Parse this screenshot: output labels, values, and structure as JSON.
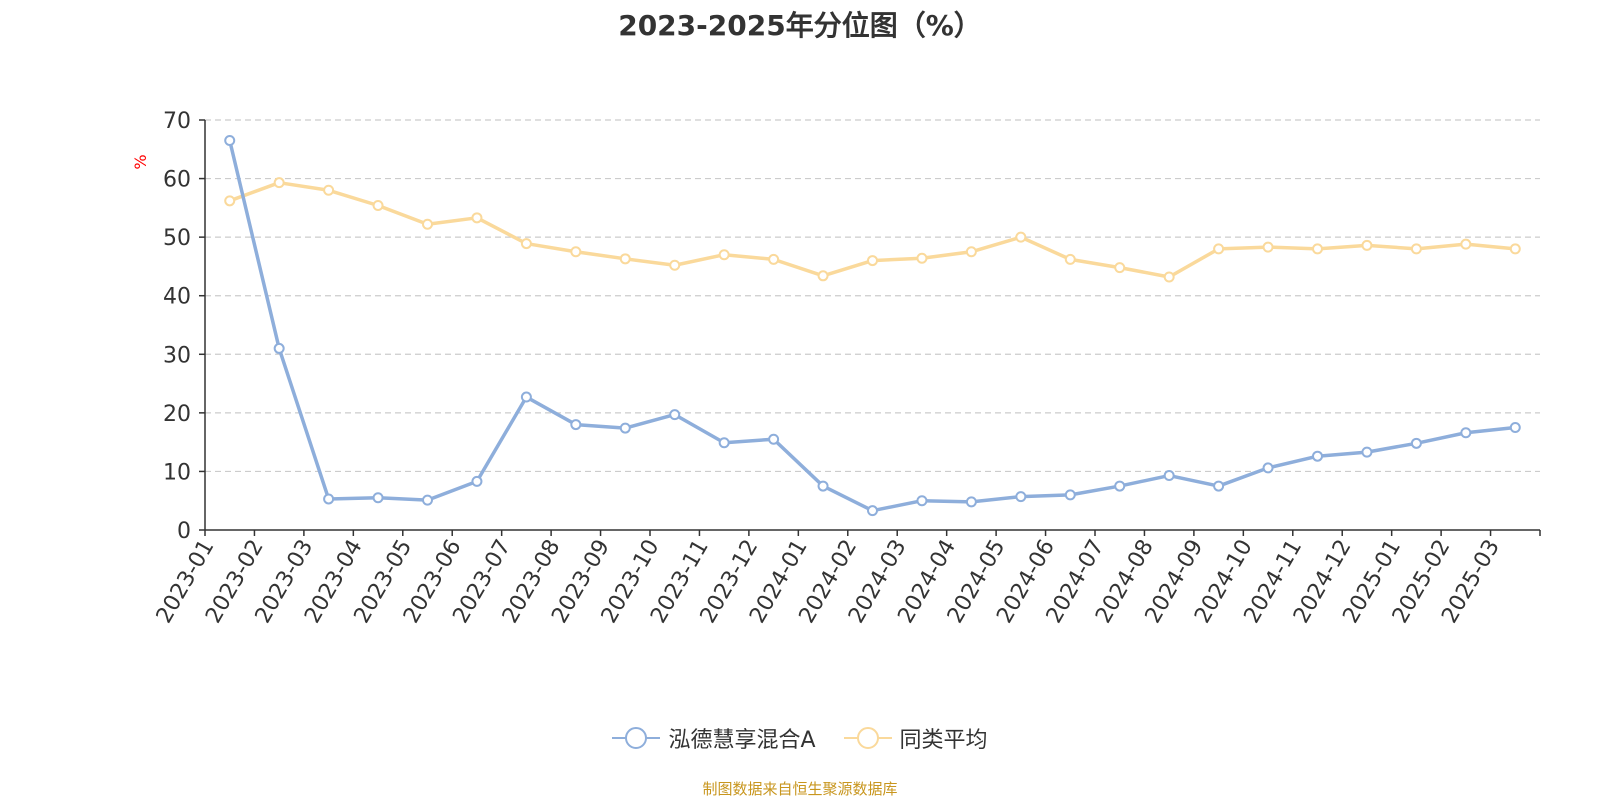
{
  "title": "2023-2025年分位图（%）",
  "source_note": "制图数据来自恒生聚源数据库",
  "colors": {
    "series1": "#8eaedb",
    "series2": "#fad99b",
    "grid": "#cccccc",
    "axis": "#333333",
    "unit_label": "#ff0000",
    "source": "#c8961e"
  },
  "chart_data": {
    "type": "line",
    "title": "2023-2025年分位图（%）",
    "ylabel": "%",
    "xlabel": "",
    "ylim": [
      0,
      70
    ],
    "yticks": [
      0,
      10,
      20,
      30,
      40,
      50,
      60,
      70
    ],
    "grid": true,
    "legend_position": "bottom-center",
    "categories": [
      "2023-01",
      "2023-02",
      "2023-03",
      "2023-04",
      "2023-05",
      "2023-06",
      "2023-07",
      "2023-08",
      "2023-09",
      "2023-10",
      "2023-11",
      "2023-12",
      "2024-01",
      "2024-02",
      "2024-03",
      "2024-04",
      "2024-05",
      "2024-06",
      "2024-07",
      "2024-08",
      "2024-09",
      "2024-10",
      "2024-11",
      "2024-12",
      "2025-01",
      "2025-02",
      "2025-03"
    ],
    "series": [
      {
        "name": "泓德慧享混合A",
        "color": "#8eaedb",
        "values": [
          66.5,
          31.0,
          5.3,
          5.5,
          5.1,
          8.3,
          22.7,
          18.0,
          17.4,
          19.7,
          14.9,
          15.5,
          7.5,
          3.3,
          5.0,
          4.8,
          5.7,
          6.0,
          7.5,
          9.3,
          7.5,
          10.6,
          12.6,
          13.3,
          14.8,
          16.6,
          17.5
        ]
      },
      {
        "name": "同类平均",
        "color": "#fad99b",
        "values": [
          56.2,
          59.3,
          58.0,
          55.4,
          52.2,
          53.3,
          48.9,
          47.5,
          46.3,
          45.2,
          47.0,
          46.2,
          43.4,
          46.0,
          46.4,
          47.5,
          50.0,
          46.2,
          44.8,
          43.2,
          48.0,
          48.3,
          48.0,
          48.6,
          48.0,
          48.8,
          48.0
        ]
      }
    ]
  }
}
